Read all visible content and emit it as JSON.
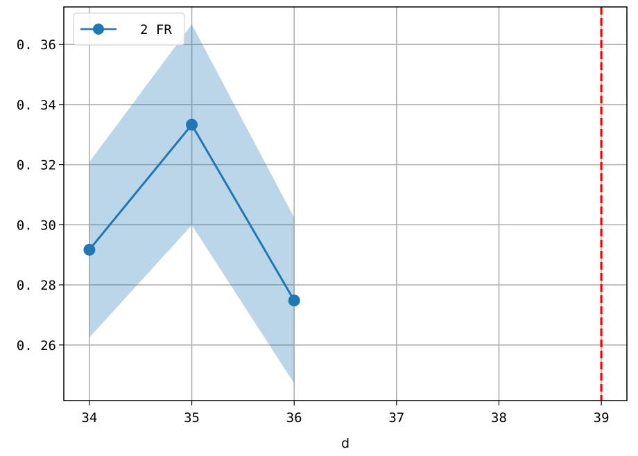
{
  "chart_data": {
    "type": "line",
    "title": "",
    "xlabel": "d",
    "ylabel": "",
    "xlim": [
      33.75,
      39.25
    ],
    "ylim": [
      0.2415,
      0.3725
    ],
    "grid": true,
    "legend_position": "top-left",
    "x_ticks": [
      34,
      35,
      36,
      37,
      38,
      39
    ],
    "x_tick_labels": [
      "34",
      "35",
      "36",
      "37",
      "38",
      "39"
    ],
    "y_ticks": [
      0.26,
      0.28,
      0.3,
      0.32,
      0.34,
      0.36
    ],
    "y_tick_labels": [
      "0. 26",
      "0. 28",
      "0. 30",
      "0. 32",
      "0. 34",
      "0. 36"
    ],
    "series": [
      {
        "name": "2 FR",
        "x": [
          34,
          35,
          36
        ],
        "values": [
          0.2917,
          0.3333,
          0.2748
        ],
        "lower": [
          0.2625,
          0.2999,
          0.2472
        ],
        "upper": [
          0.3209,
          0.3667,
          0.3024
        ],
        "color": "#1f77b4",
        "band_color": "#1f77b4"
      }
    ],
    "reference_line": {
      "x": 39,
      "color": "#ff0000",
      "style": "dashed"
    }
  }
}
